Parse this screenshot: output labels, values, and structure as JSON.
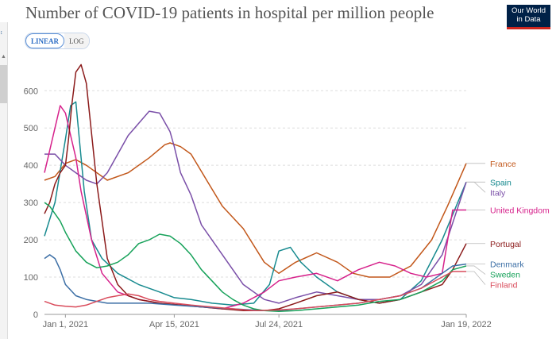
{
  "title": "Number of COVID-19 patients in hospital per million people",
  "logo": {
    "line1": "Our World",
    "line2": "in Data"
  },
  "side_strip": {
    "glyph": "↕",
    "up_icon": "chevron-up-icon"
  },
  "scale_toggle": {
    "linear": "LINEAR",
    "log": "LOG",
    "selected": "LINEAR"
  },
  "colors": {
    "France": "#c2571a",
    "Spain": "#178a8f",
    "Italy": "#7a4fa8",
    "United Kingdom": "#d6218b",
    "Portugal": "#8b1a1a",
    "Denmark": "#3b6ea5",
    "Sweden": "#17a25a",
    "Finland": "#d94b5b"
  },
  "chart_data": {
    "type": "line",
    "title": "Number of COVID-19 patients in hospital per million people",
    "xlabel": "",
    "ylabel": "",
    "x_ticks": [
      "Jan 1, 2021",
      "Apr 15, 2021",
      "Jul 24, 2021",
      "Jan 19, 2022"
    ],
    "x_tick_days": [
      0,
      104,
      204,
      383
    ],
    "x_range_days": [
      -20,
      383
    ],
    "y_ticks": [
      0,
      100,
      200,
      300,
      400,
      500,
      600
    ],
    "ylim": [
      0,
      690
    ],
    "grid": "horizontal dotted",
    "legend": "right, labels at line ends",
    "series": [
      {
        "name": "France",
        "x": [
          -20,
          -10,
          0,
          10,
          20,
          40,
          60,
          80,
          95,
          100,
          110,
          120,
          135,
          150,
          170,
          190,
          204,
          220,
          240,
          260,
          275,
          290,
          310,
          330,
          350,
          365,
          383
        ],
        "y": [
          360,
          370,
          405,
          415,
          400,
          360,
          380,
          420,
          455,
          460,
          450,
          430,
          360,
          290,
          230,
          140,
          110,
          140,
          165,
          140,
          110,
          100,
          100,
          130,
          200,
          290,
          405
        ]
      },
      {
        "name": "Spain",
        "x": [
          -20,
          -10,
          0,
          5,
          10,
          15,
          18,
          25,
          35,
          50,
          70,
          90,
          104,
          120,
          140,
          160,
          180,
          195,
          204,
          215,
          225,
          240,
          260,
          280,
          300,
          320,
          340,
          360,
          383
        ],
        "y": [
          210,
          300,
          470,
          560,
          570,
          420,
          330,
          200,
          150,
          110,
          80,
          60,
          45,
          40,
          30,
          25,
          30,
          80,
          170,
          180,
          140,
          100,
          60,
          40,
          30,
          40,
          90,
          200,
          355
        ]
      },
      {
        "name": "Italy",
        "x": [
          -20,
          -10,
          0,
          10,
          20,
          30,
          40,
          60,
          80,
          90,
          100,
          104,
          110,
          120,
          130,
          150,
          170,
          190,
          204,
          220,
          240,
          260,
          280,
          300,
          320,
          340,
          360,
          383
        ],
        "y": [
          430,
          430,
          400,
          380,
          360,
          350,
          380,
          480,
          545,
          540,
          490,
          450,
          380,
          320,
          240,
          160,
          80,
          40,
          30,
          45,
          60,
          50,
          40,
          40,
          50,
          80,
          160,
          355
        ]
      },
      {
        "name": "United Kingdom",
        "x": [
          -20,
          -15,
          -10,
          -5,
          0,
          5,
          10,
          15,
          25,
          35,
          50,
          70,
          90,
          110,
          130,
          150,
          170,
          190,
          204,
          220,
          240,
          260,
          280,
          300,
          315,
          330,
          345,
          360,
          370,
          383
        ],
        "y": [
          380,
          440,
          500,
          560,
          540,
          480,
          420,
          330,
          200,
          110,
          60,
          40,
          30,
          25,
          20,
          15,
          30,
          60,
          90,
          100,
          110,
          90,
          120,
          140,
          130,
          110,
          100,
          110,
          280,
          280
        ]
      },
      {
        "name": "Portugal",
        "x": [
          -20,
          -15,
          -10,
          -5,
          0,
          3,
          6,
          10,
          15,
          20,
          30,
          40,
          50,
          60,
          70,
          90,
          110,
          130,
          150,
          170,
          190,
          204,
          220,
          240,
          260,
          280,
          300,
          320,
          340,
          360,
          370,
          383
        ],
        "y": [
          270,
          300,
          350,
          380,
          400,
          470,
          560,
          650,
          670,
          620,
          350,
          150,
          80,
          50,
          40,
          30,
          25,
          20,
          15,
          10,
          10,
          15,
          30,
          50,
          60,
          40,
          30,
          40,
          60,
          80,
          120,
          190
        ]
      },
      {
        "name": "Denmark",
        "x": [
          -20,
          -15,
          -10,
          -5,
          0,
          10,
          20,
          40,
          60,
          80,
          104,
          130,
          160,
          190,
          204,
          220,
          240,
          260,
          280,
          300,
          320,
          340,
          360,
          370,
          383
        ],
        "y": [
          150,
          160,
          150,
          120,
          80,
          50,
          40,
          30,
          30,
          30,
          25,
          20,
          15,
          10,
          10,
          15,
          20,
          25,
          30,
          40,
          50,
          70,
          110,
          130,
          135
        ]
      },
      {
        "name": "Sweden",
        "x": [
          -20,
          -15,
          -10,
          -5,
          0,
          10,
          20,
          30,
          40,
          50,
          60,
          70,
          80,
          90,
          100,
          110,
          120,
          130,
          140,
          150,
          160,
          170,
          180,
          190,
          204,
          220,
          240,
          260,
          280,
          300,
          320,
          340,
          360,
          370,
          383
        ],
        "y": [
          300,
          290,
          270,
          250,
          220,
          170,
          140,
          125,
          130,
          140,
          160,
          190,
          200,
          215,
          210,
          190,
          160,
          120,
          90,
          60,
          40,
          25,
          15,
          10,
          8,
          10,
          15,
          20,
          25,
          35,
          40,
          60,
          90,
          120,
          130
        ]
      },
      {
        "name": "Finland",
        "x": [
          -20,
          -15,
          -10,
          0,
          10,
          20,
          30,
          40,
          50,
          60,
          70,
          80,
          90,
          104,
          120,
          140,
          160,
          180,
          204,
          220,
          240,
          260,
          280,
          300,
          320,
          340,
          360,
          370,
          383
        ],
        "y": [
          35,
          30,
          25,
          22,
          20,
          25,
          35,
          45,
          50,
          55,
          50,
          40,
          35,
          30,
          25,
          20,
          15,
          10,
          12,
          15,
          20,
          25,
          30,
          40,
          50,
          70,
          100,
          115,
          115
        ]
      }
    ]
  }
}
